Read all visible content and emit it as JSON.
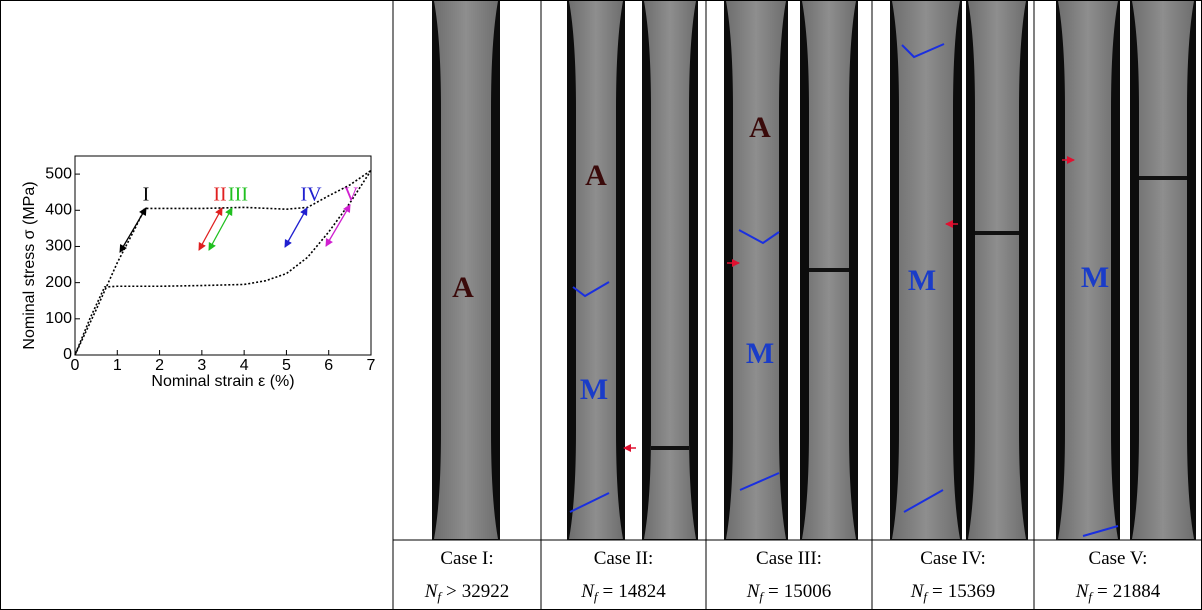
{
  "chart_data": {
    "type": "line",
    "xlabel": "Nominal strain ε (%)",
    "ylabel": "Nominal stress σ (MPa)",
    "xlim": [
      0,
      7
    ],
    "xticks": [
      0,
      1,
      2,
      3,
      4,
      5,
      6,
      7
    ],
    "ylim": [
      0,
      550
    ],
    "yticks": [
      0,
      100,
      200,
      300,
      400,
      500
    ],
    "series": [
      {
        "color": "#000000",
        "x": [
          0,
          0.5,
          1.0,
          1.4,
          1.65,
          2,
          3,
          4,
          5,
          5.5,
          6,
          6.5,
          7
        ],
        "values": [
          0,
          125,
          255,
          345,
          405,
          405,
          405,
          408,
          403,
          408,
          440,
          470,
          510
        ]
      },
      {
        "color": "#000000",
        "x": [
          7,
          6.5,
          6,
          5.5,
          5,
          4.5,
          4,
          3,
          2,
          1,
          0.7,
          0.35,
          0
        ],
        "values": [
          510,
          420,
          340,
          270,
          225,
          205,
          195,
          192,
          190,
          190,
          188,
          100,
          0
        ]
      }
    ],
    "annotations": [
      {
        "text": "I",
        "color": "#000000"
      },
      {
        "text": "II",
        "color": "#e02020"
      },
      {
        "text": "III",
        "color": "#20c020"
      },
      {
        "text": "IV",
        "color": "#2020d0"
      },
      {
        "text": "V",
        "color": "#d020d0"
      }
    ]
  },
  "table": {
    "cases": [
      {
        "label": "Case I:",
        "symbol": "N",
        "subscript": "f",
        "relation": ">",
        "cycles": 32922,
        "phases": [
          "A"
        ]
      },
      {
        "label": "Case II:",
        "symbol": "N",
        "subscript": "f",
        "relation": "=",
        "cycles": 14824,
        "phases": [
          "A",
          "M"
        ]
      },
      {
        "label": "Case III:",
        "symbol": "N",
        "subscript": "f",
        "relation": "=",
        "cycles": 15006,
        "phases": [
          "A",
          "M"
        ]
      },
      {
        "label": "Case IV:",
        "symbol": "N",
        "subscript": "f",
        "relation": "=",
        "cycles": 15369,
        "phases": [
          "M"
        ]
      },
      {
        "label": "Case V:",
        "symbol": "N",
        "subscript": "f",
        "relation": "=",
        "cycles": 21884,
        "phases": [
          "M"
        ]
      }
    ]
  }
}
